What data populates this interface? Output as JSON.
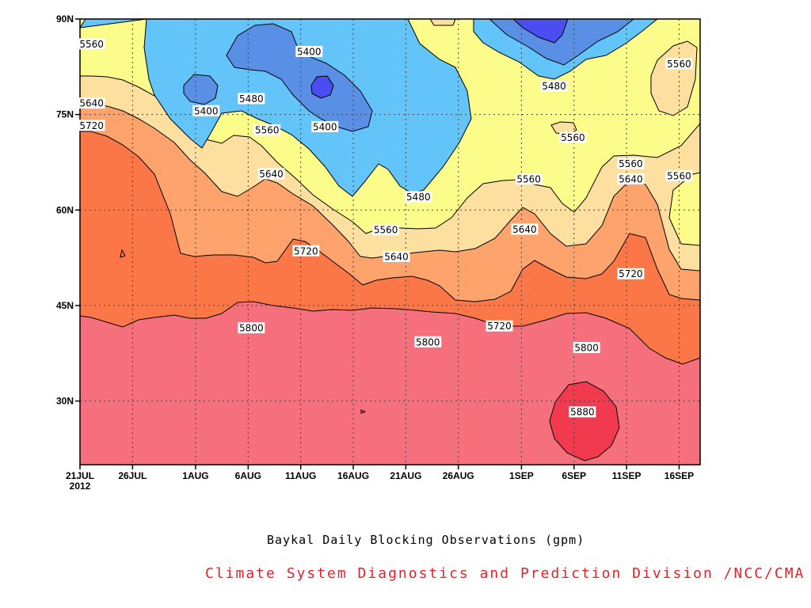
{
  "page": {
    "title": "Baykal Daily Blocking Observations (gpm)",
    "source": "Climate System Diagnostics and Prediction Division /NCC/CMA"
  },
  "chart_data": {
    "type": "heatmap",
    "title": "Baykal Daily Blocking Observations (gpm)",
    "xlabel": "",
    "ylabel": "",
    "x_ticks": [
      "21JUL",
      "26JUL",
      "1AUG",
      "6AUG",
      "11AUG",
      "16AUG",
      "21AUG",
      "26AUG",
      "1SEP",
      "6SEP",
      "11SEP",
      "16SEP"
    ],
    "x_tick_days": [
      0,
      5,
      11,
      16,
      21,
      26,
      31,
      36,
      42,
      47,
      52,
      57
    ],
    "x_year_label": "2012",
    "xlim": [
      0,
      59
    ],
    "y_ticks": [
      "30N",
      "45N",
      "60N",
      "75N",
      "90N"
    ],
    "y_tick_values": [
      30,
      45,
      60,
      75,
      90
    ],
    "ylim": [
      20,
      90
    ],
    "grid": true,
    "contour_levels": [
      5400,
      5480,
      5560,
      5640,
      5720,
      5800,
      5880
    ],
    "fill_colors": {
      "below_5400": "#5a8fe6",
      "5400_5480": "#63c4fa",
      "5480_5560": "#fbfc8a",
      "5560_5640": "#fde0a0",
      "5640_5720": "#fda36b",
      "5720_5800": "#fb7748",
      "5800_5880": "#f56f7c",
      "above_5880": "#f23a4e",
      "minimum_core": "#4a4df0"
    },
    "contour_labels": [
      {
        "text": "5400",
        "x": 21.8,
        "y": 84.9
      },
      {
        "text": "5400",
        "x": 12.0,
        "y": 75.6
      },
      {
        "text": "5400",
        "x": 23.3,
        "y": 73.1
      },
      {
        "text": "5480",
        "x": 16.3,
        "y": 77.5
      },
      {
        "text": "5480",
        "x": 32.2,
        "y": 62.1
      },
      {
        "text": "5480",
        "x": 45.1,
        "y": 79.5
      },
      {
        "text": "5560",
        "x": 1.1,
        "y": 86.1
      },
      {
        "text": "5560",
        "x": 17.8,
        "y": 72.6
      },
      {
        "text": "5560",
        "x": 29.1,
        "y": 56.9
      },
      {
        "text": "5560",
        "x": 42.7,
        "y": 64.9
      },
      {
        "text": "5560",
        "x": 46.9,
        "y": 71.4
      },
      {
        "text": "5560",
        "x": 52.4,
        "y": 67.3
      },
      {
        "text": "5560",
        "x": 57.0,
        "y": 83.0
      },
      {
        "text": "5560",
        "x": 57.0,
        "y": 65.4
      },
      {
        "text": "5640",
        "x": 1.1,
        "y": 76.8
      },
      {
        "text": "5640",
        "x": 18.2,
        "y": 65.7
      },
      {
        "text": "5640",
        "x": 30.1,
        "y": 52.7
      },
      {
        "text": "5640",
        "x": 42.3,
        "y": 57.0
      },
      {
        "text": "5640",
        "x": 52.4,
        "y": 64.9
      },
      {
        "text": "5720",
        "x": 1.1,
        "y": 73.3
      },
      {
        "text": "5720",
        "x": 21.5,
        "y": 53.6
      },
      {
        "text": "5720",
        "x": 39.9,
        "y": 41.8
      },
      {
        "text": "5720",
        "x": 52.4,
        "y": 50.0
      },
      {
        "text": "5800",
        "x": 16.3,
        "y": 41.5
      },
      {
        "text": "5800",
        "x": 33.1,
        "y": 39.3
      },
      {
        "text": "5800",
        "x": 48.2,
        "y": 38.4
      },
      {
        "text": "5880",
        "x": 47.8,
        "y": 28.3
      }
    ]
  }
}
